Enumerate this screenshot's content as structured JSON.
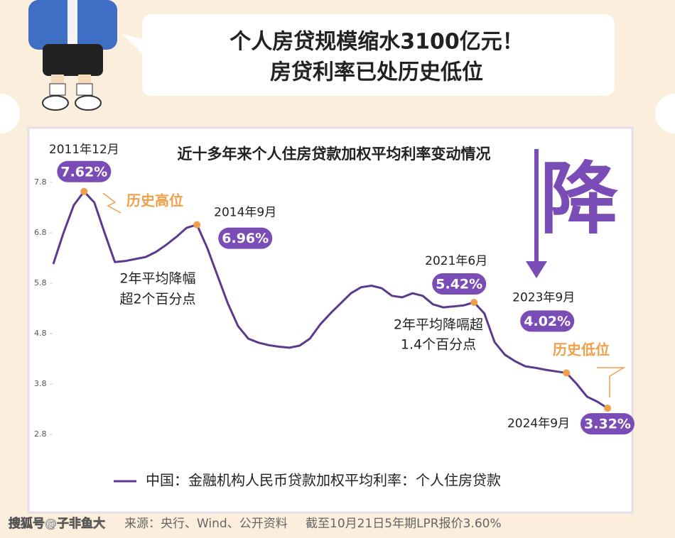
{
  "header": {
    "lines": [
      "个人房贷规模缩水3100亿元！",
      "房贷利率已处历史低位"
    ]
  },
  "chart_data": {
    "type": "line",
    "title": "近十多年来个人住房贷款加权平均利率变动情况",
    "big_char": "降",
    "x": [
      2011.17,
      2011.42,
      2011.67,
      2011.92,
      2012.17,
      2012.42,
      2012.67,
      2012.92,
      2013.17,
      2013.42,
      2013.67,
      2013.92,
      2014.17,
      2014.42,
      2014.67,
      2014.92,
      2015.17,
      2015.42,
      2015.67,
      2015.92,
      2016.17,
      2016.42,
      2016.67,
      2016.92,
      2017.17,
      2017.42,
      2017.67,
      2017.92,
      2018.17,
      2018.42,
      2018.67,
      2018.92,
      2019.17,
      2019.42,
      2019.67,
      2019.92,
      2020.17,
      2020.42,
      2020.67,
      2020.92,
      2021.17,
      2021.42,
      2021.67,
      2021.92,
      2022.17,
      2022.42,
      2022.67,
      2022.92,
      2023.17,
      2023.42,
      2023.67,
      2023.92,
      2024.17,
      2024.42,
      2024.67
    ],
    "series": [
      {
        "name": "中国：金融机构人民币贷款加权平均利率：个人住房贷款",
        "color": "#5b3a8e",
        "values": [
          6.18,
          6.8,
          7.35,
          7.62,
          7.4,
          6.8,
          6.22,
          6.24,
          6.28,
          6.32,
          6.42,
          6.56,
          6.72,
          6.9,
          6.96,
          6.5,
          5.95,
          5.4,
          4.95,
          4.7,
          4.62,
          4.57,
          4.54,
          4.52,
          4.56,
          4.7,
          4.98,
          5.2,
          5.4,
          5.6,
          5.72,
          5.75,
          5.7,
          5.55,
          5.52,
          5.6,
          5.55,
          5.38,
          5.32,
          5.34,
          5.36,
          5.42,
          5.2,
          4.63,
          4.38,
          4.25,
          4.15,
          4.12,
          4.08,
          4.05,
          4.02,
          3.8,
          3.55,
          3.45,
          3.32
        ]
      }
    ],
    "xlim": [
      2011.17,
      2024.67
    ],
    "ylim": [
      2.8,
      7.8
    ],
    "yticks": [
      2.8,
      3.8,
      4.8,
      5.8,
      6.8,
      7.8
    ],
    "highlights": [
      {
        "date": "2011年12月",
        "x": 2011.92,
        "value": 7.62,
        "value_label": "7.62%"
      },
      {
        "date": "2014年9月",
        "x": 2014.67,
        "value": 6.96,
        "value_label": "6.96%"
      },
      {
        "date": "2021年6月",
        "x": 2021.42,
        "value": 5.42,
        "value_label": "5.42%"
      },
      {
        "date": "2023年9月",
        "x": 2023.67,
        "value": 4.02,
        "value_label": "4.02%"
      },
      {
        "date": "2024年9月",
        "x": 2024.67,
        "value": 3.32,
        "value_label": "3.32%"
      }
    ],
    "annotations": {
      "high": "历史高位",
      "low": "历史低位",
      "drop1": [
        "2年平均降幅",
        "超2个百分点"
      ],
      "drop2": [
        "2年平均降嗝超",
        "1.4个百分点"
      ]
    }
  },
  "footer": {
    "watermark": "搜狐号@子非鱼大",
    "source": "来源：央行、Wind、公开资料",
    "note": "截至10月21日5年期LPR报价3.60%"
  }
}
